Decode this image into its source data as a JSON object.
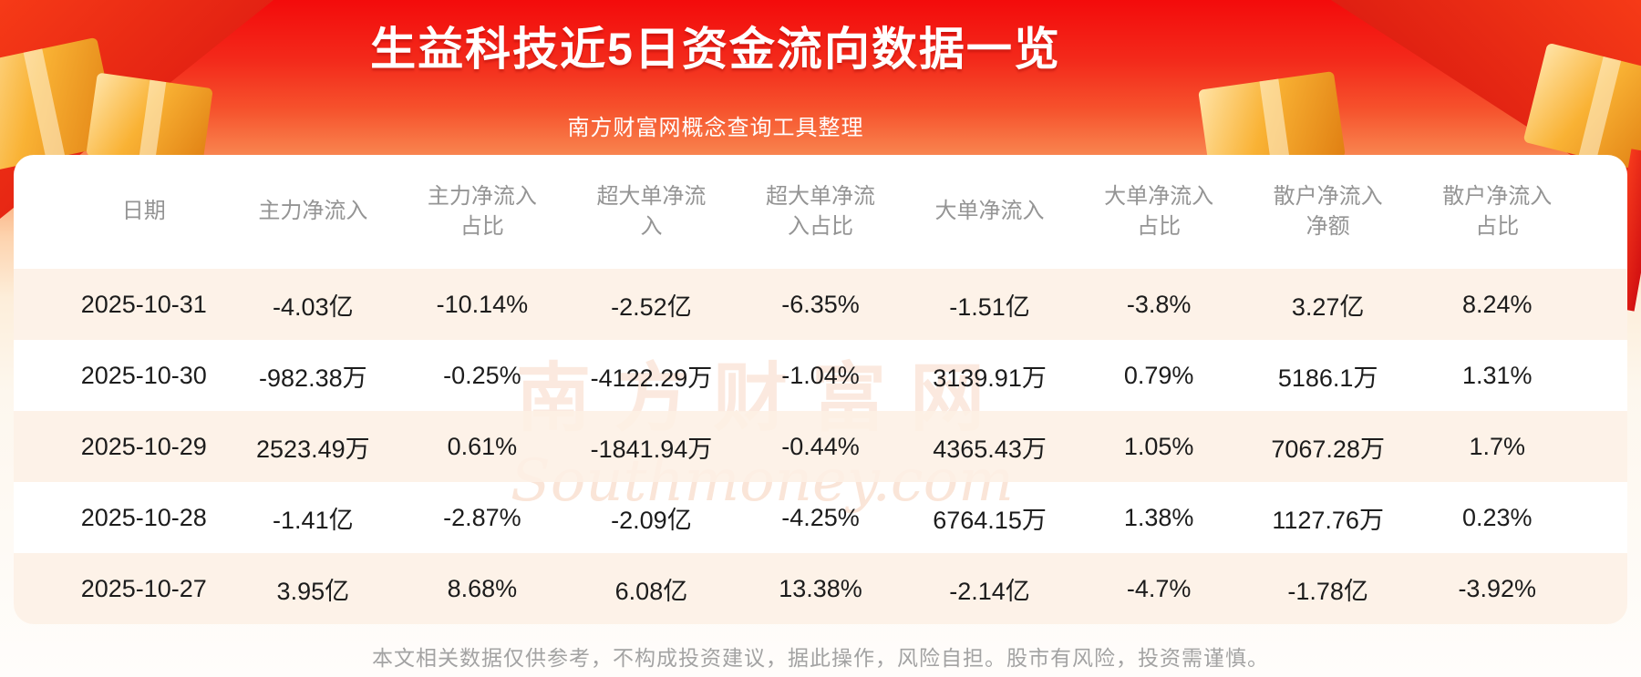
{
  "header": {
    "title": "生益科技近5日资金流向数据一览",
    "subtitle": "南方财富网概念查询工具整理"
  },
  "chart_data": {
    "type": "table",
    "title": "生益科技近5日资金流向数据一览",
    "columns": [
      "日期",
      "主力净流入",
      "主力净流入占比",
      "超大单净流入",
      "超大单净流入占比",
      "大单净流入",
      "大单净流入占比",
      "散户净流入净额",
      "散户净流入占比"
    ],
    "rows": [
      [
        "2025-10-31",
        "-4.03亿",
        "-10.14%",
        "-2.52亿",
        "-6.35%",
        "-1.51亿",
        "-3.8%",
        "3.27亿",
        "8.24%"
      ],
      [
        "2025-10-30",
        "-982.38万",
        "-0.25%",
        "-4122.29万",
        "-1.04%",
        "3139.91万",
        "0.79%",
        "5186.1万",
        "1.31%"
      ],
      [
        "2025-10-29",
        "2523.49万",
        "0.61%",
        "-1841.94万",
        "-0.44%",
        "4365.43万",
        "1.05%",
        "7067.28万",
        "1.7%"
      ],
      [
        "2025-10-28",
        "-1.41亿",
        "-2.87%",
        "-2.09亿",
        "-4.25%",
        "6764.15万",
        "1.38%",
        "1127.76万",
        "0.23%"
      ],
      [
        "2025-10-27",
        "3.95亿",
        "8.68%",
        "6.08亿",
        "13.38%",
        "-2.14亿",
        "-4.7%",
        "-1.78亿",
        "-3.92%"
      ]
    ]
  },
  "watermark": {
    "cn": "南方财富网",
    "en": "Southmoney.com"
  },
  "footer": {
    "disclaimer": "本文相关数据仅供参考，不构成投资建议，据此操作，风险自担。股市有风险，投资需谨慎。"
  },
  "colors": {
    "top_red": "#f30b0b",
    "accent_orange": "#f9b234",
    "row_alt": "#fdf0e5",
    "header_text": "#949494",
    "body_text": "#1c1c1c",
    "title_text": "#ffffff"
  }
}
